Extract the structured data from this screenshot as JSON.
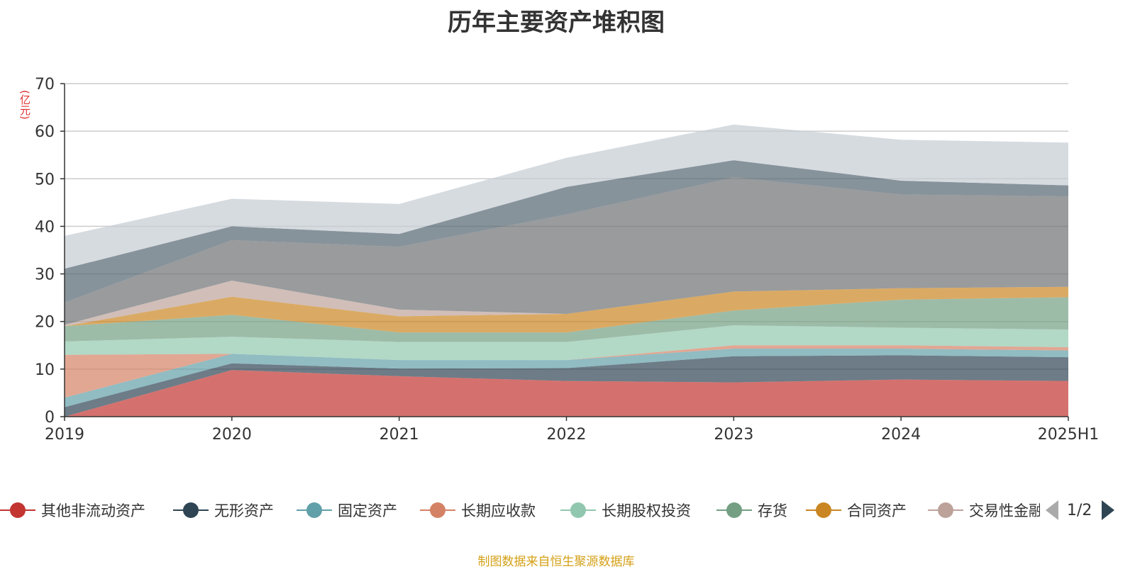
{
  "title": "历年主要资产堆积图",
  "unit_label": "(亿元)",
  "source_text": "制图数据来自恒生聚源数据库",
  "legend": {
    "page_text": "1/2",
    "items": [
      {
        "label": "其他非流动资产",
        "color": "#c23531"
      },
      {
        "label": "无形资产",
        "color": "#2f4554"
      },
      {
        "label": "固定资产",
        "color": "#61a0a8"
      },
      {
        "label": "长期应收款",
        "color": "#d48265"
      },
      {
        "label": "长期股权投资",
        "color": "#91c7ae"
      },
      {
        "label": "存货",
        "color": "#749f83"
      },
      {
        "label": "合同资产",
        "color": "#ca8622"
      },
      {
        "label": "交易性金融资产",
        "color": "#bda29a"
      }
    ]
  },
  "chart_data": {
    "type": "area",
    "stacked": true,
    "title": "历年主要资产堆积图",
    "ylabel": "(亿元)",
    "xlabel": "",
    "x": [
      "2019",
      "2020",
      "2021",
      "2022",
      "2023",
      "2024",
      "2025H1"
    ],
    "ylim": [
      0,
      70
    ],
    "yticks": [
      0,
      10,
      20,
      30,
      40,
      50,
      60,
      70
    ],
    "grid": true,
    "legend_position": "bottom",
    "series": [
      {
        "name": "其他非流动资产",
        "color": "#c23531",
        "values": [
          0,
          9.8,
          8.5,
          7.5,
          7.2,
          7.8,
          7.5
        ]
      },
      {
        "name": "无形资产",
        "color": "#2f4554",
        "values": [
          2.0,
          1.4,
          1.6,
          2.7,
          5.5,
          5.1,
          5.0
        ]
      },
      {
        "name": "固定资产",
        "color": "#61a0a8",
        "values": [
          2.0,
          2.0,
          1.8,
          1.7,
          1.6,
          1.4,
          1.4
        ]
      },
      {
        "name": "长期应收款",
        "color": "#d48265",
        "values": [
          9.0,
          0,
          0,
          0,
          0.7,
          0.7,
          0.7
        ]
      },
      {
        "name": "长期股权投资",
        "color": "#91c7ae",
        "values": [
          2.8,
          3.6,
          3.8,
          3.8,
          4.2,
          3.7,
          3.7
        ]
      },
      {
        "name": "存货",
        "color": "#749f83",
        "values": [
          3.2,
          4.6,
          2.0,
          2.0,
          3.1,
          5.9,
          6.8
        ]
      },
      {
        "name": "合同资产",
        "color": "#ca8622",
        "values": [
          0,
          3.8,
          3.4,
          3.9,
          4.0,
          2.4,
          2.2
        ]
      },
      {
        "name": "交易性金融资产",
        "color": "#bda29a",
        "values": [
          0.3,
          3.4,
          1.4,
          0,
          0,
          0,
          0
        ]
      },
      {
        "name": "",
        "color": "#6e7074",
        "values": [
          4.7,
          8.5,
          13.2,
          20.9,
          24.0,
          19.7,
          19.0
        ]
      },
      {
        "name": "",
        "color": "#546570",
        "values": [
          7.1,
          2.9,
          2.7,
          5.8,
          3.6,
          2.9,
          2.3
        ]
      },
      {
        "name": "",
        "color": "#c4ccd3",
        "values": [
          6.9,
          5.8,
          6.3,
          6.1,
          7.5,
          8.6,
          9.0
        ]
      }
    ]
  }
}
